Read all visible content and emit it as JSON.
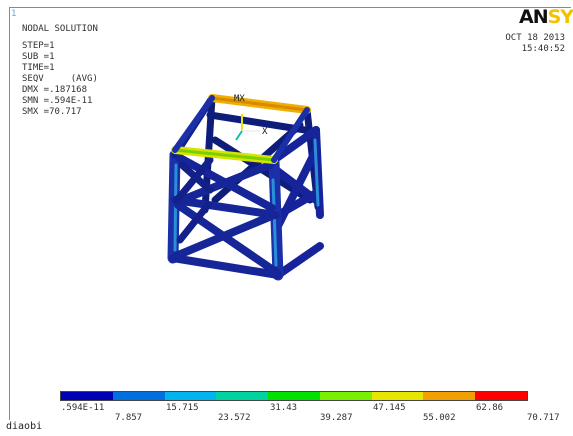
{
  "window_number": "1",
  "header": {
    "title": "NODAL SOLUTION",
    "step": "STEP=1",
    "sub": "SUB =1",
    "time": "TIME=1",
    "result": "SEQV     (AVG)",
    "dmx": "DMX =.187168",
    "smn": "SMN =.594E-11",
    "smx": "SMX =70.717"
  },
  "logo": {
    "part_a": "AN",
    "part_b": "SYS",
    "color_a": "#101010",
    "color_b": "#f2c200"
  },
  "datetime": {
    "date": "OCT 18 2013",
    "time": "15:40:52"
  },
  "triad": {
    "mx_label": "MX",
    "x_label": "X"
  },
  "legend": {
    "colors": [
      "#0000b4",
      "#0070e0",
      "#00b4f0",
      "#00d2a0",
      "#00e100",
      "#78f000",
      "#e6e600",
      "#f0a000",
      "#ff0000"
    ],
    "values_top": [
      ".594E-11",
      "15.715",
      "31.43",
      "47.145",
      "62.86"
    ],
    "values_bottom": [
      "7.857",
      "23.572",
      "39.287",
      "55.002",
      "70.717"
    ]
  },
  "footer": {
    "label": "diaobi"
  }
}
